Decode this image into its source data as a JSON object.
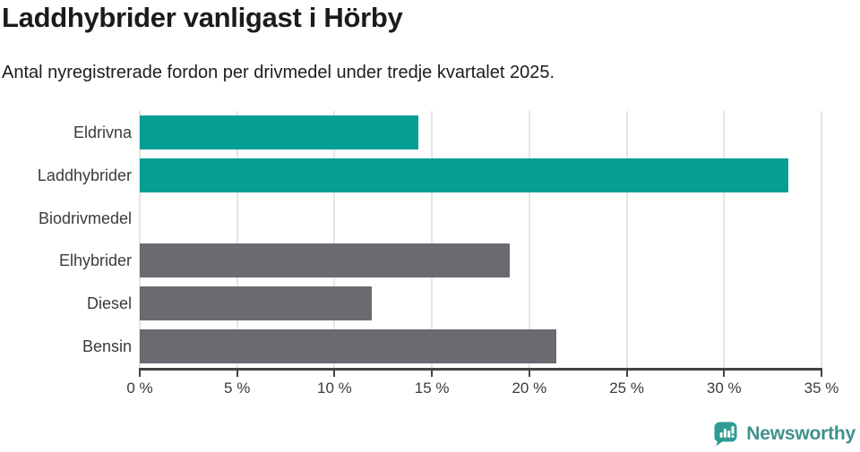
{
  "header": {
    "title": "Laddhybrider vanligast i Hörby",
    "subtitle": "Antal nyregistrerade fordon per drivmedel under tredje kvartalet 2025."
  },
  "chart_data": {
    "type": "bar",
    "orientation": "horizontal",
    "title": "Laddhybrider vanligast i Hörby",
    "subtitle": "Antal nyregistrerade fordon per drivmedel under tredje kvartalet 2025.",
    "categories": [
      "Eldrivna",
      "Laddhybrider",
      "Biodrivmedel",
      "Elhybrider",
      "Diesel",
      "Bensin"
    ],
    "values": [
      14.3,
      33.3,
      0,
      19.0,
      11.9,
      21.4
    ],
    "value_unit": "%",
    "bar_colors": [
      "#049e94",
      "#049e94",
      "#049e94",
      "#6b6a71",
      "#6b6a71",
      "#6b6a71"
    ],
    "xlim": [
      0,
      35
    ],
    "x_ticks": [
      0,
      5,
      10,
      15,
      20,
      25,
      30,
      35
    ],
    "x_tick_labels": [
      "0 %",
      "5 %",
      "10 %",
      "15 %",
      "20 %",
      "25 %",
      "30 %",
      "35 %"
    ],
    "xlabel": "",
    "ylabel": "",
    "grid": "vertical",
    "legend": "none"
  },
  "colors": {
    "accent_teal": "#049e94",
    "bar_gray": "#6b6a71",
    "axis": "#434244",
    "gridline": "#e5e5e6",
    "text_dark": "#1b1b1a",
    "label_gray": "#3b3b3b",
    "logo_icon": "#2f9c94",
    "logo_text": "#3e918c"
  },
  "footer": {
    "brand": "Newsworthy",
    "logo_icon": "newsworthy-speech-bubble-bar-chart-icon"
  }
}
